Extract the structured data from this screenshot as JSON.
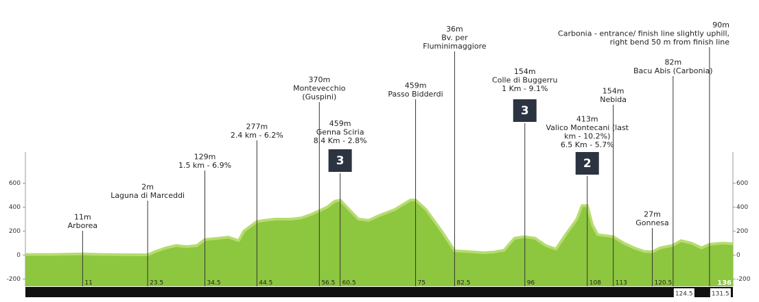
{
  "chart_data": {
    "type": "area",
    "color": "#8dc63f",
    "x": [
      0,
      5,
      11,
      15,
      23.5,
      25,
      27,
      29,
      31,
      33,
      34.5,
      37,
      39,
      41,
      42,
      44.5,
      46,
      48,
      51,
      53,
      55,
      56.5,
      58,
      59.5,
      60.5,
      62,
      64,
      66,
      68,
      71,
      74,
      75,
      77,
      80,
      82.5,
      85,
      88,
      90,
      92,
      94,
      96,
      98,
      100,
      102,
      104,
      106,
      107,
      108,
      109,
      110,
      113,
      115,
      117,
      119,
      120.5,
      122,
      124.5,
      126,
      128,
      130,
      131.5,
      134,
      136
    ],
    "values": [
      5,
      5,
      10,
      5,
      2,
      30,
      60,
      80,
      70,
      80,
      130,
      140,
      150,
      120,
      200,
      280,
      290,
      300,
      300,
      310,
      340,
      370,
      400,
      450,
      459,
      390,
      300,
      290,
      330,
      380,
      459,
      459,
      380,
      200,
      36,
      30,
      20,
      25,
      40,
      140,
      154,
      140,
      80,
      50,
      180,
      300,
      413,
      413,
      250,
      170,
      154,
      100,
      60,
      30,
      27,
      60,
      82,
      120,
      100,
      60,
      90,
      100,
      95
    ],
    "xlim": [
      0,
      136
    ],
    "ylim": [
      -260,
      860
    ],
    "yticks": [
      -200,
      0,
      200,
      400,
      600
    ],
    "xticks": [
      0,
      11,
      23.5,
      34.5,
      44.5,
      56.5,
      60.5,
      75,
      82.5,
      96,
      108,
      113,
      120.5,
      124.5,
      131.5,
      136
    ],
    "waypoints": [
      {
        "km": 11,
        "lines": [
          "11m",
          "Arborea"
        ]
      },
      {
        "km": 23.5,
        "lines": [
          "2m",
          "Laguna di Marceddi"
        ]
      },
      {
        "km": 34.5,
        "lines": [
          "129m",
          "1.5 km - 6.9%"
        ]
      },
      {
        "km": 44.5,
        "lines": [
          "277m",
          "2.4 km - 6.2%"
        ]
      },
      {
        "km": 56.5,
        "lines": [
          "370m",
          "Montevecchio",
          "(Guspini)"
        ]
      },
      {
        "km": 60.5,
        "lines": [
          "459m",
          "Genna Sciria",
          "8.4 Km - 2.8%"
        ],
        "category": "3"
      },
      {
        "km": 75,
        "lines": [
          "459m",
          "Passo Bidderdi"
        ]
      },
      {
        "km": 82.5,
        "lines": [
          "36m",
          "Bv. per",
          "Fluminimaggiore"
        ]
      },
      {
        "km": 96,
        "lines": [
          "154m",
          "Colle di Buggerru",
          "1 Km - 9.1%"
        ],
        "category": "3"
      },
      {
        "km": 108,
        "lines": [
          "413m",
          "Valico Montecani (last",
          "km - 10.2%)",
          "6.5 Km - 5.7%"
        ],
        "category": "2"
      },
      {
        "km": 113,
        "lines": [
          "154m",
          "Nebida"
        ]
      },
      {
        "km": 120.5,
        "lines": [
          "27m",
          "Gonnesa"
        ]
      },
      {
        "km": 124.5,
        "lines": [
          "82m",
          "Bacu Abis (Carbonia)"
        ]
      },
      {
        "km": 131.5,
        "lines": [
          "90m",
          "Carbonia - entrance/ finish line slightly uphill,",
          "right bend 50 m from finish line"
        ]
      }
    ]
  }
}
